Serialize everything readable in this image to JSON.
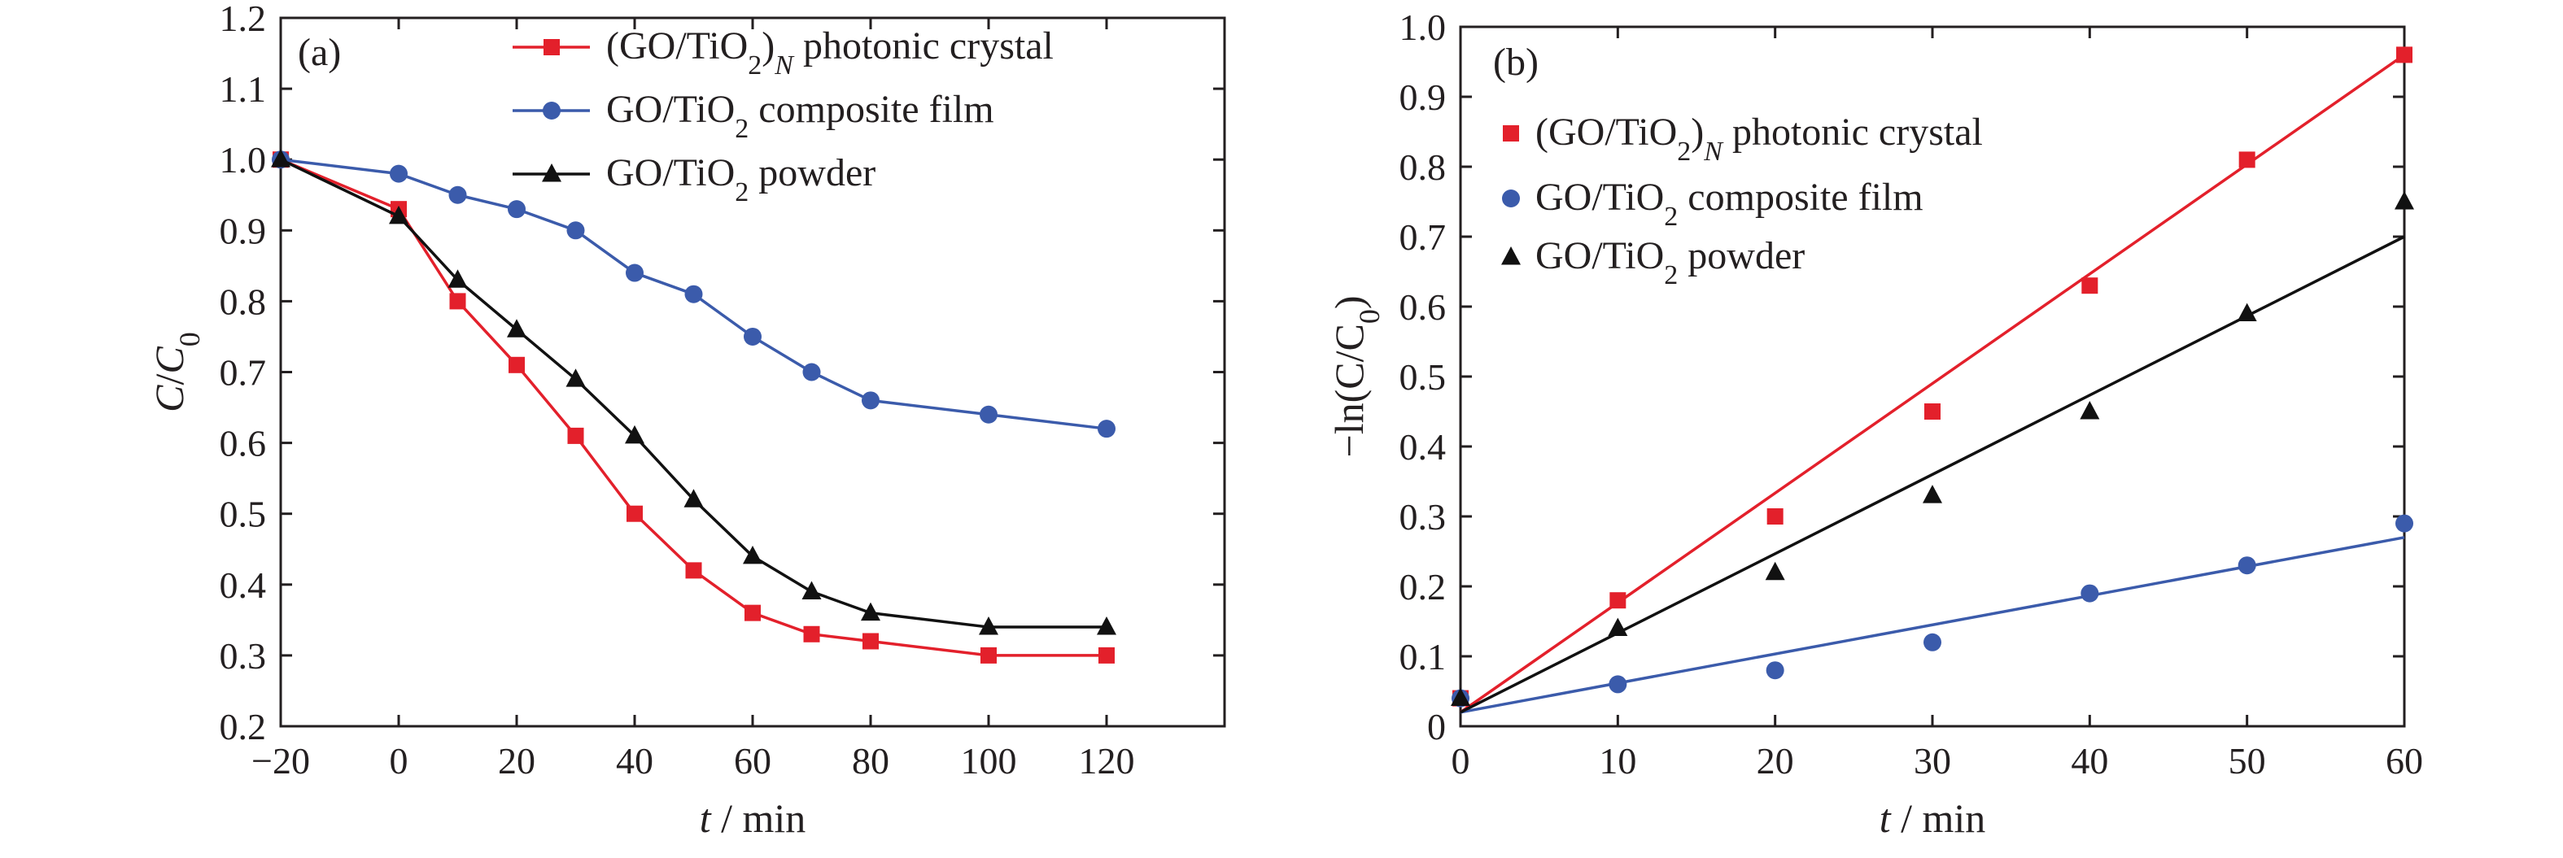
{
  "chart_data": [
    {
      "type": "line",
      "panel_label": "(a)",
      "xlabel": {
        "italic": "t",
        "rest": " / min"
      },
      "ylabel": {
        "C": "C",
        "slash": "/",
        "C0": "C",
        "sub": "0"
      },
      "xlim": [
        -20,
        140
      ],
      "ylim": [
        0.2,
        1.2
      ],
      "x_ticks": [
        -20,
        0,
        20,
        40,
        60,
        80,
        100,
        120
      ],
      "x_tick_labels": [
        "−20",
        "0",
        "20",
        "40",
        "60",
        "80",
        "100",
        "120"
      ],
      "y_ticks": [
        0.2,
        0.3,
        0.4,
        0.5,
        0.6,
        0.7,
        0.8,
        0.9,
        1.0,
        1.1,
        1.2
      ],
      "y_tick_labels": [
        "0.2",
        "0.3",
        "0.4",
        "0.5",
        "0.6",
        "0.7",
        "0.8",
        "0.9",
        "1.0",
        "1.1",
        "1.2"
      ],
      "grid": false,
      "legend_position": "top-right",
      "series": [
        {
          "name": "(GO/TiO2)N photonic crystal",
          "legend_parts": [
            "(GO/TiO",
            "2",
            ")",
            "N",
            " photonic crystal"
          ],
          "color": "#e3202b",
          "marker": "square",
          "x": [
            -20,
            0,
            10,
            20,
            30,
            40,
            50,
            60,
            70,
            80,
            100,
            120
          ],
          "y": [
            1.0,
            0.93,
            0.8,
            0.71,
            0.61,
            0.5,
            0.42,
            0.36,
            0.33,
            0.32,
            0.3,
            0.3
          ]
        },
        {
          "name": "GO/TiO2 composite film",
          "legend_parts": [
            "GO/TiO",
            "2",
            " composite film"
          ],
          "color": "#3b5bab",
          "marker": "circle",
          "x": [
            -20,
            0,
            10,
            20,
            30,
            40,
            50,
            60,
            70,
            80,
            100,
            120
          ],
          "y": [
            1.0,
            0.98,
            0.95,
            0.93,
            0.9,
            0.84,
            0.81,
            0.75,
            0.7,
            0.66,
            0.64,
            0.62
          ]
        },
        {
          "name": "GO/TiO2 powder",
          "legend_parts": [
            "GO/TiO",
            "2",
            " powder"
          ],
          "color": "#111111",
          "marker": "triangle",
          "x": [
            -20,
            0,
            10,
            20,
            30,
            40,
            50,
            60,
            70,
            80,
            100,
            120
          ],
          "y": [
            1.0,
            0.92,
            0.83,
            0.76,
            0.69,
            0.61,
            0.52,
            0.44,
            0.39,
            0.36,
            0.34,
            0.34
          ]
        }
      ]
    },
    {
      "type": "scatter",
      "panel_label": "(b)",
      "xlabel": {
        "italic": "t",
        "rest": " / min"
      },
      "ylabel": {
        "text": "−ln(C/C",
        "sub": "0",
        "close": ")"
      },
      "xlim": [
        0,
        60
      ],
      "ylim": [
        0,
        1.0
      ],
      "x_ticks": [
        0,
        10,
        20,
        30,
        40,
        50,
        60
      ],
      "x_tick_labels": [
        "0",
        "10",
        "20",
        "30",
        "40",
        "50",
        "60"
      ],
      "y_ticks": [
        0,
        0.1,
        0.2,
        0.3,
        0.4,
        0.5,
        0.6,
        0.7,
        0.8,
        0.9,
        1.0
      ],
      "y_tick_labels": [
        "0",
        "0.1",
        "0.2",
        "0.3",
        "0.4",
        "0.5",
        "0.6",
        "0.7",
        "0.8",
        "0.9",
        "1.0"
      ],
      "grid": false,
      "legend_position": "top-left",
      "series": [
        {
          "name": "(GO/TiO2)N photonic crystal",
          "legend_parts": [
            "(GO/TiO",
            "2",
            ")",
            "N",
            " photonic crystal"
          ],
          "color": "#e3202b",
          "marker": "square",
          "x": [
            0,
            10,
            20,
            30,
            40,
            50,
            60
          ],
          "y": [
            0.04,
            0.18,
            0.3,
            0.45,
            0.63,
            0.81,
            0.96
          ],
          "fit": {
            "x": [
              0,
              60
            ],
            "y": [
              0.02,
              0.96
            ]
          }
        },
        {
          "name": "GO/TiO2 composite film",
          "legend_parts": [
            "GO/TiO",
            "2",
            " composite film"
          ],
          "color": "#3b5bab",
          "marker": "circle",
          "x": [
            0,
            10,
            20,
            30,
            40,
            50,
            60
          ],
          "y": [
            0.04,
            0.06,
            0.08,
            0.12,
            0.19,
            0.23,
            0.29
          ],
          "fit": {
            "x": [
              0,
              60
            ],
            "y": [
              0.02,
              0.27
            ]
          }
        },
        {
          "name": "GO/TiO2 powder",
          "legend_parts": [
            "GO/TiO",
            "2",
            " powder"
          ],
          "color": "#111111",
          "marker": "triangle",
          "x": [
            0,
            10,
            20,
            30,
            40,
            50,
            60
          ],
          "y": [
            0.04,
            0.14,
            0.22,
            0.33,
            0.45,
            0.59,
            0.75
          ],
          "fit": {
            "x": [
              0,
              60
            ],
            "y": [
              0.02,
              0.7
            ]
          }
        }
      ]
    }
  ]
}
